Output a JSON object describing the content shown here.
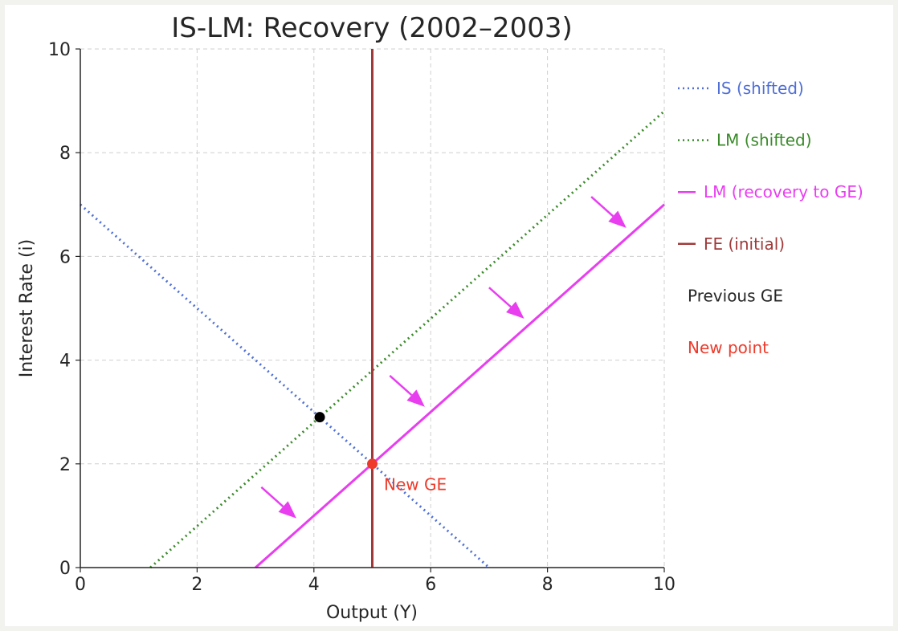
{
  "chart_data": {
    "type": "line",
    "title": "IS-LM: Recovery (2002–2003)",
    "xlabel": "Output (Y)",
    "ylabel": "Interest Rate (i)",
    "xlim": [
      0,
      10
    ],
    "ylim": [
      0,
      10
    ],
    "xticks": [
      "0",
      "2",
      "4",
      "6",
      "8",
      "10"
    ],
    "yticks": [
      "0",
      "2",
      "4",
      "6",
      "8",
      "10"
    ],
    "grid": true,
    "legend_position": "outside-right",
    "series": [
      {
        "name": "IS (shifted)",
        "style": "dotted",
        "color": "#4f6fd6",
        "points": [
          [
            0,
            7
          ],
          [
            7,
            0
          ]
        ]
      },
      {
        "name": "LM (shifted)",
        "style": "dotted",
        "color": "#3a8a2a",
        "points": [
          [
            1.2,
            0
          ],
          [
            10,
            8.8
          ]
        ]
      },
      {
        "name": "LM (recovery to GE)",
        "style": "solid",
        "color": "#e83ef0",
        "points": [
          [
            3,
            0
          ],
          [
            10,
            7
          ]
        ]
      },
      {
        "name": "FE (initial)",
        "style": "solid",
        "color": "#a03a3a",
        "points": [
          [
            5,
            0
          ],
          [
            5,
            10
          ]
        ]
      }
    ],
    "points": [
      {
        "name": "Previous GE",
        "x": 4.1,
        "y": 2.9,
        "color": "#000000"
      },
      {
        "name": "New point",
        "x": 5,
        "y": 2,
        "color": "#ee3a2a"
      }
    ],
    "annotations": [
      {
        "text": "New GE",
        "x": 5.2,
        "y": 1.6,
        "color": "#ee3a2a"
      }
    ],
    "arrows": [
      {
        "from": [
          3.1,
          1.55
        ],
        "to": [
          3.7,
          0.95
        ],
        "color": "#e83ef0"
      },
      {
        "from": [
          5.3,
          3.7
        ],
        "to": [
          5.9,
          3.1
        ],
        "color": "#e83ef0"
      },
      {
        "from": [
          7.0,
          5.4
        ],
        "to": [
          7.6,
          4.8
        ],
        "color": "#e83ef0"
      },
      {
        "from": [
          8.75,
          7.15
        ],
        "to": [
          9.35,
          6.55
        ],
        "color": "#e83ef0"
      }
    ]
  }
}
